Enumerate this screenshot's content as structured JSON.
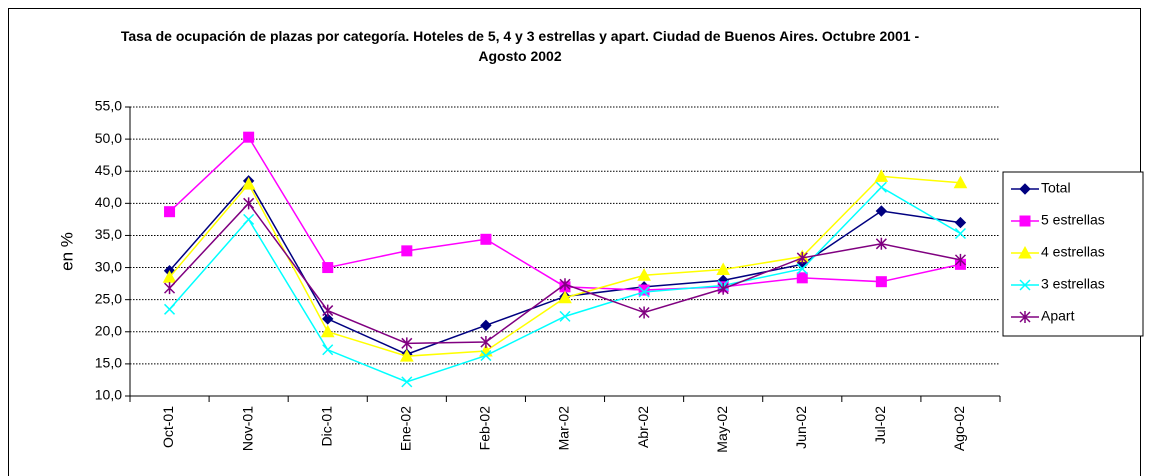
{
  "chart_data": {
    "type": "line",
    "title": "Tasa de ocupación de plazas por categoría. Hoteles de 5, 4  y 3 estrellas y apart.  Ciudad de Buenos Aires. Octubre 2001 - Agosto 2002",
    "y_label": "en %",
    "categories": [
      "Oct-01",
      "Nov-01",
      "Dic-01",
      "Ene-02",
      "Feb-02",
      "Mar-02",
      "Abr-02",
      "May-02",
      "Jun-02",
      "Jul-02",
      "Ago-02"
    ],
    "series": [
      {
        "name": "Total",
        "color": "#000080",
        "marker": "diamond",
        "values": [
          29.5,
          43.5,
          22.0,
          16.5,
          21.0,
          25.5,
          27.0,
          28.0,
          30.5,
          38.8,
          37.0
        ]
      },
      {
        "name": "5 estrellas",
        "color": "#ff00ff",
        "marker": "square",
        "values": [
          38.7,
          50.3,
          30.0,
          32.6,
          34.4,
          27.0,
          26.5,
          27.0,
          28.4,
          27.8,
          30.5
        ]
      },
      {
        "name": "4 estrellas",
        "color": "#ffff00",
        "marker": "triangle",
        "values": [
          28.5,
          43.0,
          20.0,
          16.2,
          17.0,
          25.3,
          28.8,
          29.7,
          31.7,
          44.2,
          43.2
        ]
      },
      {
        "name": "3 estrellas",
        "color": "#00ffff",
        "marker": "x",
        "values": [
          23.5,
          37.5,
          17.2,
          12.2,
          16.3,
          22.4,
          26.2,
          27.2,
          29.8,
          42.5,
          35.3
        ]
      },
      {
        "name": "Apart",
        "color": "#800080",
        "marker": "star",
        "values": [
          26.8,
          40.0,
          23.3,
          18.2,
          18.4,
          27.4,
          23.0,
          26.7,
          31.5,
          33.7,
          31.2
        ]
      }
    ],
    "ylim": [
      10,
      55
    ],
    "yticks": [
      {
        "value": 10,
        "label": "10,0"
      },
      {
        "value": 15,
        "label": "15,0"
      },
      {
        "value": 20,
        "label": "20,0"
      },
      {
        "value": 25,
        "label": "25,0"
      },
      {
        "value": 30,
        "label": "30,0"
      },
      {
        "value": 35,
        "label": "35,0"
      },
      {
        "value": 40,
        "label": "40,0"
      },
      {
        "value": 45,
        "label": "45,0"
      },
      {
        "value": 50,
        "label": "50,0"
      },
      {
        "value": 55,
        "label": "55,0"
      }
    ],
    "grid": true,
    "legend": "right"
  }
}
